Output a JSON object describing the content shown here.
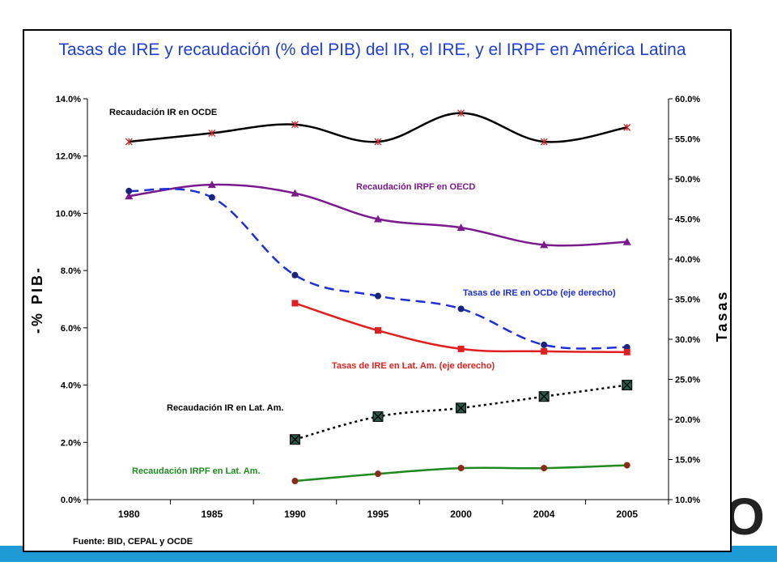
{
  "chart_data": {
    "type": "line",
    "title": "Tasas de IRE y recaudación (% del PIB) del IR, el IRE, y el IRPF en América Latina",
    "ylabel_left": "-% PIB-",
    "ylabel_right": "Tasas",
    "source": "Fuente: BID, CEPAL y OCDE",
    "x": [
      "1980",
      "1985",
      "1990",
      "1995",
      "2000",
      "2004",
      "2005"
    ],
    "y_left_lim": [
      0,
      14
    ],
    "y_right_lim": [
      10,
      60
    ],
    "y_left_ticks": [
      "0.0%",
      "2.0%",
      "4.0%",
      "6.0%",
      "8.0%",
      "10.0%",
      "12.0%",
      "14.0%"
    ],
    "y_right_ticks": [
      "10.0%",
      "15.0%",
      "20.0%",
      "25.0%",
      "30.0%",
      "35.0%",
      "40.0%",
      "45.0%",
      "50.0%",
      "55.0%",
      "60.0%"
    ],
    "series": [
      {
        "name": "Recaudación IR en OCDE",
        "axis": "left",
        "color": "#000000",
        "marker": "asterisk",
        "marker_color": "#cc2222",
        "dash": "none",
        "values": [
          12.5,
          12.8,
          13.1,
          12.5,
          13.5,
          12.5,
          13.0
        ]
      },
      {
        "name": "Recaudación IRPF en OECD",
        "axis": "left",
        "color": "#7a1a8c",
        "marker": "triangle",
        "marker_color": "#7a1a8c",
        "dash": "none",
        "values": [
          10.6,
          11.0,
          10.7,
          9.8,
          9.5,
          8.9,
          9.0
        ]
      },
      {
        "name": "Tasas de IRE en OCDe (eje derecho)",
        "axis": "right",
        "color": "#1f2fd6",
        "marker": "circle",
        "marker_color": "#1a237e",
        "dash": "dash",
        "values": [
          48.5,
          47.7,
          38.0,
          35.4,
          33.8,
          29.3,
          29.0
        ]
      },
      {
        "name": "Tasas de IRE en Lat. Am. (eje derecho)",
        "axis": "right",
        "color": "#e02020",
        "marker": "square",
        "marker_color": "#e02020",
        "dash": "none",
        "values": [
          null,
          null,
          34.5,
          31.1,
          28.8,
          28.5,
          28.4
        ]
      },
      {
        "name": "Recaudación IR en Lat. Am.",
        "axis": "left",
        "color": "#000000",
        "marker": "boxx",
        "marker_color": "#2a5a4a",
        "dash": "dot",
        "values": [
          null,
          null,
          2.1,
          2.9,
          3.2,
          3.6,
          4.0
        ]
      },
      {
        "name": "Recaudación IRPF en Lat. Am.",
        "axis": "left",
        "color": "#1f8a1f",
        "marker": "circle",
        "marker_color": "#8b2a1a",
        "dash": "none",
        "values": [
          null,
          null,
          0.65,
          0.9,
          1.1,
          1.1,
          1.2
        ]
      }
    ]
  }
}
